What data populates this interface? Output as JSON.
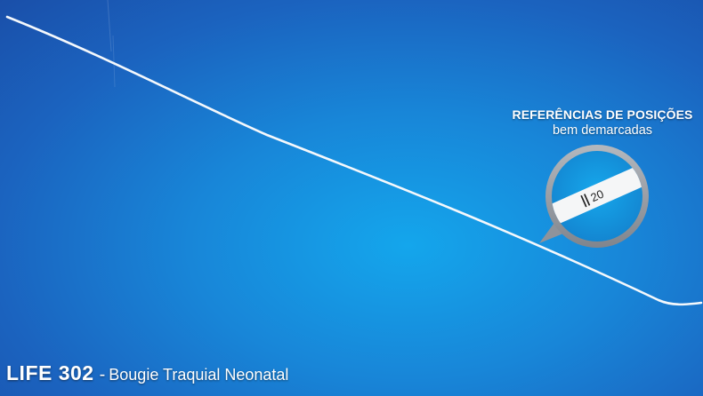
{
  "callout": {
    "title": "REFERÊNCIAS DE POSIÇÕES",
    "subtitle": "bem demarcadas",
    "marking_label": "20"
  },
  "caption": {
    "model": "LIFE 302",
    "separator": "-",
    "product": "Bougie Traquial Neonatal"
  },
  "colors": {
    "background": "#1886d8",
    "background_edge": "#1a4fa9",
    "bougie": "#f4f8fc",
    "callout_ring": "#9a9ea6",
    "text": "#ffffff"
  }
}
